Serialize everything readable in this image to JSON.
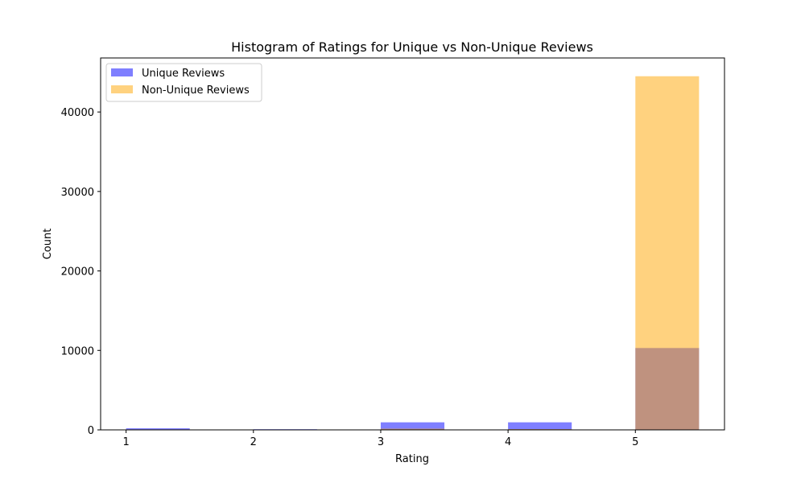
{
  "chart_data": {
    "type": "bar",
    "title": "Histogram of Ratings for Unique vs Non-Unique Reviews",
    "xlabel": "Rating",
    "ylabel": "Count",
    "xlim": [
      0.8,
      5.7
    ],
    "ylim": [
      0,
      46800
    ],
    "xticks": [
      "1",
      "2",
      "3",
      "4",
      "5"
    ],
    "yticks": [
      "0",
      "10000",
      "20000",
      "30000",
      "40000"
    ],
    "bin_edges": [
      [
        1.0,
        1.5
      ],
      [
        2.0,
        2.5
      ],
      [
        3.0,
        3.5
      ],
      [
        4.0,
        4.5
      ],
      [
        5.0,
        5.5
      ]
    ],
    "series": [
      {
        "name": "Unique Reviews",
        "color": "#0000ff",
        "opacity": 0.5,
        "values": [
          200,
          80,
          950,
          950,
          10300
        ]
      },
      {
        "name": "Non-Unique Reviews",
        "color": "#ffa500",
        "opacity": 0.5,
        "values": [
          60,
          30,
          150,
          100,
          44500
        ]
      }
    ],
    "legend_position": "upper-left",
    "grid": false
  }
}
